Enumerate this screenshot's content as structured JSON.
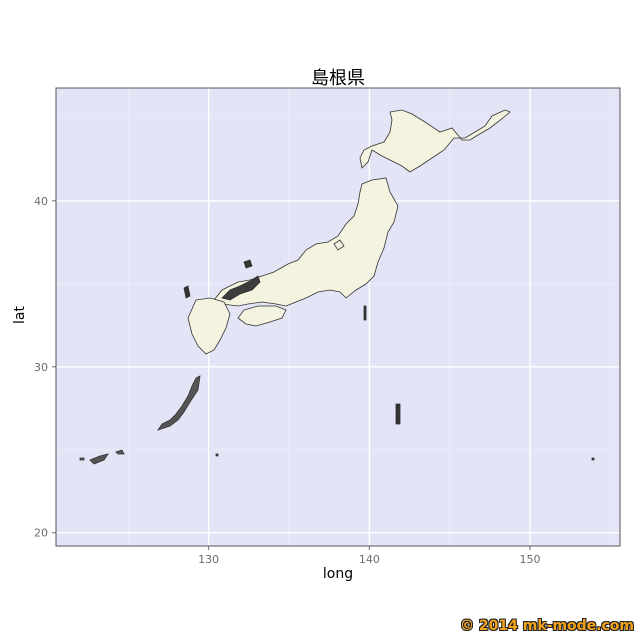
{
  "title": "島根県",
  "axes": {
    "xlabel": "long",
    "ylabel": "lat",
    "xticks": [
      130,
      140,
      150
    ],
    "yticks": [
      20,
      30,
      40
    ],
    "xlim": [
      120.5,
      155.6
    ],
    "ylim": [
      19.2,
      46.8
    ]
  },
  "copyright": "© 2014 mk-mode.com",
  "colors": {
    "panel_bg": "#e4e4f7",
    "grid_major": "#ffffff",
    "land_fill": "#f3f3e0",
    "boundary": "#333333",
    "highlight": "#3c3c3c"
  }
}
